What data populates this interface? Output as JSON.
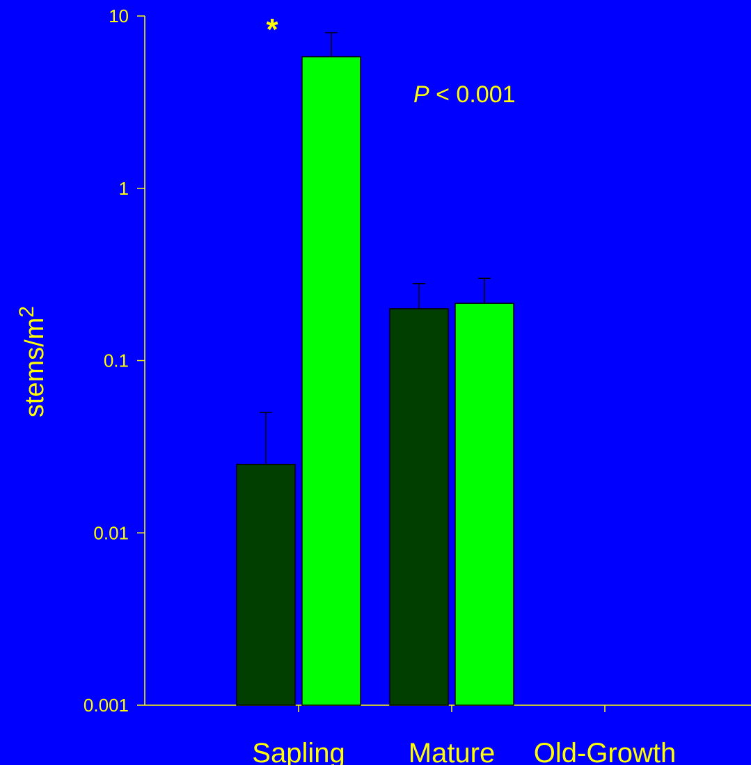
{
  "colors": {
    "background": "#0000ff",
    "text": "#ffff00",
    "axis": "#ffff00",
    "series_dark": "#003f00",
    "series_light": "#00ff00"
  },
  "chart_data": {
    "type": "bar",
    "scale": "log",
    "ylabel": "stems/m",
    "ylabel_superscript": "2",
    "ylim": [
      0.001,
      10
    ],
    "yticks": [
      {
        "value": 0.001,
        "label": "0.001"
      },
      {
        "value": 0.01,
        "label": "0.01"
      },
      {
        "value": 0.1,
        "label": "0.1"
      },
      {
        "value": 1,
        "label": "1"
      },
      {
        "value": 10,
        "label": "10"
      }
    ],
    "categories": [
      "Sapling",
      "Mature",
      "Old-Growth"
    ],
    "series": [
      {
        "color": "#003f00",
        "values": [
          0.025,
          0.2,
          null
        ],
        "error_upper": [
          0.05,
          0.28,
          null
        ]
      },
      {
        "color": "#00ff00",
        "values": [
          5.8,
          0.215,
          null
        ],
        "error_upper": [
          8.0,
          0.3,
          null
        ]
      }
    ],
    "annotations": {
      "p_italic": "P",
      "p_rest": " < 0.001",
      "significance": "*"
    },
    "grid": false,
    "legend": "none"
  }
}
